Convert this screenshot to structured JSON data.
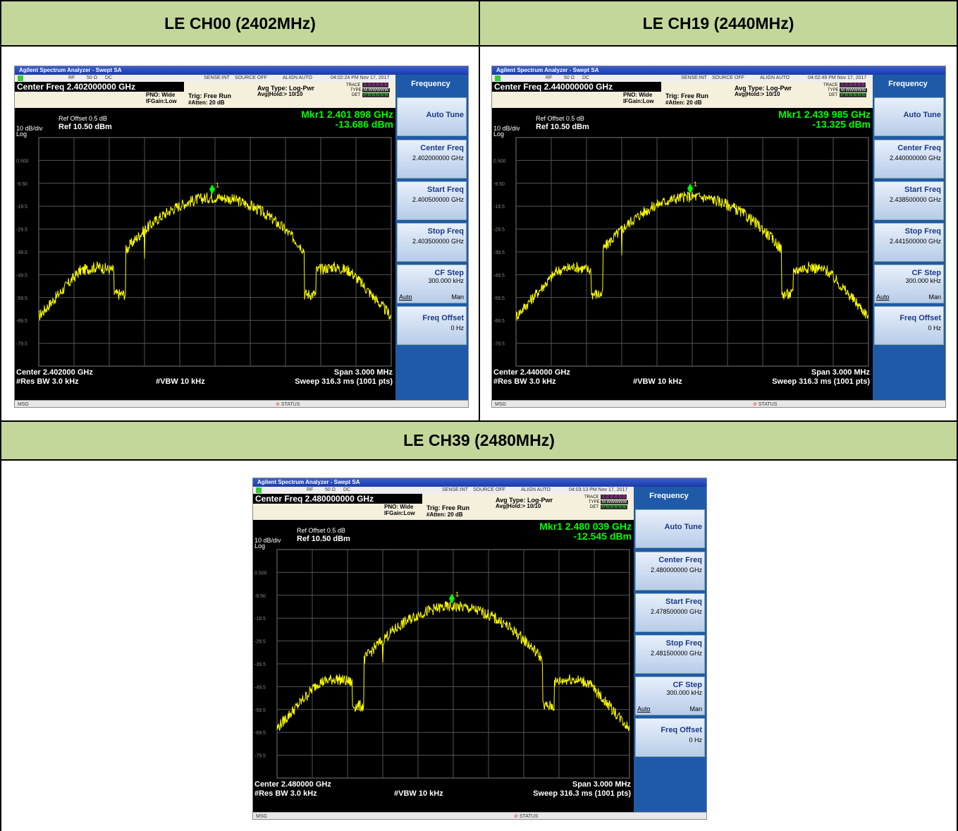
{
  "panels": [
    {
      "header": "LE CH00 (2402MHz)",
      "window_title": "Agilent Spectrum Analyzer - Swept SA",
      "status_rf": "RF",
      "status_ohm": "50 Ω",
      "status_dc": "DC",
      "status_sense": "SENSE:INT",
      "status_source": "SOURCE OFF",
      "status_align": "ALIGN AUTO",
      "timestamp": "04:02:24 PM Nov 17, 2017",
      "center_freq": "Center Freq 2.402000000 GHz",
      "pno": "PNO: Wide",
      "ifgain": "IFGain:Low",
      "trig": "Trig: Free Run",
      "atten": "#Atten: 20 dB",
      "avg_type": "Avg Type: Log-Pwr",
      "avg_hold": "Avg|Hold:> 10/10",
      "trace_lbl": "TRACE",
      "type_lbl": "TYPE",
      "det_lbl": "DET",
      "trace_val": "1 2 3 4 5 6",
      "type_val": "M WWWWW",
      "det_val": "P N N N N N",
      "marker": "Mkr1 2.401 898 GHz",
      "marker_level": "-13.686 dBm",
      "ref_offset": "Ref Offset 0.5 dB",
      "scale": "10 dB/div",
      "log": "Log",
      "ref_level": "Ref 10.50 dBm",
      "yticks": [
        "0.500",
        "-9.50",
        "-19.5",
        "-29.5",
        "-39.5",
        "-49.5",
        "-59.5",
        "-69.5",
        "-79.5"
      ],
      "center": "Center 2.402000 GHz",
      "rbw": "#Res BW 3.0 kHz",
      "vbw": "#VBW 10 kHz",
      "span": "Span 3.000 MHz",
      "sweep": "Sweep  316.3 ms (1001 pts)",
      "msg": "MSG",
      "status_btn": "STATUS",
      "softkeys": {
        "menu": "Frequency",
        "auto_tune": "Auto Tune",
        "center_freq": "Center Freq",
        "center_freq_val": "2.402000000 GHz",
        "start_freq": "Start Freq",
        "start_freq_val": "2.400500000 GHz",
        "stop_freq": "Stop Freq",
        "stop_freq_val": "2.403500000 GHz",
        "cf_step": "CF Step",
        "cf_step_val": "300.000 kHz",
        "cf_auto": "Auto",
        "cf_man": "Man",
        "freq_offset": "Freq Offset",
        "freq_offset_val": "0 Hz"
      },
      "marker_level_dbm": -13.686
    },
    {
      "header": "LE CH19 (2440MHz)",
      "window_title": "Agilent Spectrum Analyzer - Swept SA",
      "status_rf": "RF",
      "status_ohm": "50 Ω",
      "status_dc": "DC",
      "status_sense": "SENSE:INT",
      "status_source": "SOURCE OFF",
      "status_align": "ALIGN AUTO",
      "timestamp": "04:02:49 PM Nov 17, 2017",
      "center_freq": "Center Freq 2.440000000 GHz",
      "pno": "PNO: Wide",
      "ifgain": "IFGain:Low",
      "trig": "Trig: Free Run",
      "atten": "#Atten: 20 dB",
      "avg_type": "Avg Type: Log-Pwr",
      "avg_hold": "Avg|Hold:> 10/10",
      "trace_lbl": "TRACE",
      "type_lbl": "TYPE",
      "det_lbl": "DET",
      "trace_val": "1 2 3 4 5 6",
      "type_val": "M WWWWW",
      "det_val": "P N N N N N",
      "marker": "Mkr1 2.439 985 GHz",
      "marker_level": "-13.325 dBm",
      "ref_offset": "Ref Offset 0.5 dB",
      "scale": "10 dB/div",
      "log": "Log",
      "ref_level": "Ref 10.50 dBm",
      "yticks": [
        "0.500",
        "-9.50",
        "-19.5",
        "-29.5",
        "-39.5",
        "-49.5",
        "-59.5",
        "-69.5",
        "-79.5"
      ],
      "center": "Center 2.440000 GHz",
      "rbw": "#Res BW 3.0 kHz",
      "vbw": "#VBW 10 kHz",
      "span": "Span 3.000 MHz",
      "sweep": "Sweep  316.3 ms (1001 pts)",
      "msg": "MSG",
      "status_btn": "STATUS",
      "softkeys": {
        "menu": "Frequency",
        "auto_tune": "Auto Tune",
        "center_freq": "Center Freq",
        "center_freq_val": "2.440000000 GHz",
        "start_freq": "Start Freq",
        "start_freq_val": "2.438500000 GHz",
        "stop_freq": "Stop Freq",
        "stop_freq_val": "2.441500000 GHz",
        "cf_step": "CF Step",
        "cf_step_val": "300.000 kHz",
        "cf_auto": "Auto",
        "cf_man": "Man",
        "freq_offset": "Freq Offset",
        "freq_offset_val": "0 Hz"
      },
      "marker_level_dbm": -13.325
    },
    {
      "header": "LE CH39 (2480MHz)",
      "window_title": "Agilent Spectrum Analyzer - Swept SA",
      "status_rf": "RF",
      "status_ohm": "50 Ω",
      "status_dc": "DC",
      "status_sense": "SENSE:INT",
      "status_source": "SOURCE OFF",
      "status_align": "ALIGN AUTO",
      "timestamp": "04:03:13 PM Nov 17, 2017",
      "center_freq": "Center Freq 2.480000000 GHz",
      "pno": "PNO: Wide",
      "ifgain": "IFGain:Low",
      "trig": "Trig: Free Run",
      "atten": "#Atten: 20 dB",
      "avg_type": "Avg Type: Log-Pwr",
      "avg_hold": "Avg|Hold:> 10/10",
      "trace_lbl": "TRACE",
      "type_lbl": "TYPE",
      "det_lbl": "DET",
      "trace_val": "1 2 3 4 5 6",
      "type_val": "M WWWWW",
      "det_val": "P N N N N N",
      "marker": "Mkr1 2.480 039 GHz",
      "marker_level": "-12.545 dBm",
      "ref_offset": "Ref Offset 0.5 dB",
      "scale": "10 dB/div",
      "log": "Log",
      "ref_level": "Ref 10.50 dBm",
      "yticks": [
        "0.500",
        "-9.50",
        "-19.5",
        "-29.5",
        "-39.5",
        "-49.5",
        "-59.5",
        "-69.5",
        "-79.5"
      ],
      "center": "Center 2.480000 GHz",
      "rbw": "#Res BW 3.0 kHz",
      "vbw": "#VBW 10 kHz",
      "span": "Span 3.000 MHz",
      "sweep": "Sweep  316.3 ms (1001 pts)",
      "msg": "MSG",
      "status_btn": "STATUS",
      "softkeys": {
        "menu": "Frequency",
        "auto_tune": "Auto Tune",
        "center_freq": "Center Freq",
        "center_freq_val": "2.480000000 GHz",
        "start_freq": "Start Freq",
        "start_freq_val": "2.478500000 GHz",
        "stop_freq": "Stop Freq",
        "stop_freq_val": "2.481500000 GHz",
        "cf_step": "CF Step",
        "cf_step_val": "300.000 kHz",
        "cf_auto": "Auto",
        "cf_man": "Man",
        "freq_offset": "Freq Offset",
        "freq_offset_val": "0 Hz"
      },
      "marker_level_dbm": -12.545
    }
  ],
  "colors": {
    "header_bg": "#c4d79b",
    "trace": "#ffff00",
    "marker": "#00ff00",
    "softkey_panel": "#1e5aa8"
  }
}
